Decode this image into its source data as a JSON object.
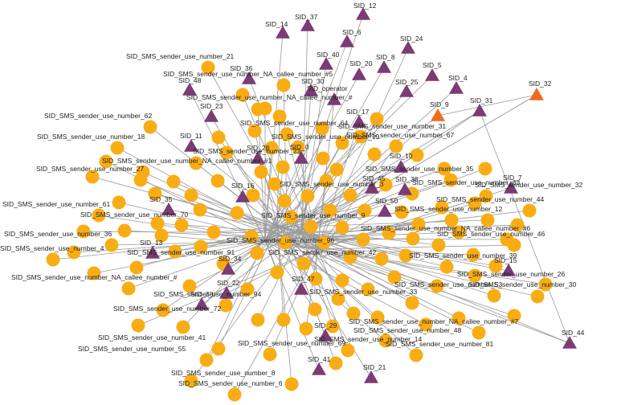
{
  "colors": {
    "edge": "#9a9a9a",
    "circle_node": "#f9ad14",
    "triangle_node": "#7b3b73",
    "highlight_triangle_node": "#f26a1d",
    "label": "#222222"
  },
  "triangle_labels": [
    "SID_37",
    "SID_12",
    "SID_14",
    "SID_6",
    "SID_24",
    "SID_40",
    "SID_8",
    "SID_20",
    "SID_5",
    "SID_36",
    "SID_30",
    "SID_4",
    "SID_48",
    "SID_25",
    "SID_operator",
    "SID_32",
    "SID_9",
    "SID_31",
    "SID_23",
    "SID_17",
    "SID_11",
    "SID_28",
    "SID_0",
    "SID_10",
    "SID_7",
    "SID_45",
    "SID_38",
    "SID_16",
    "SID_35",
    "SID_50",
    "SID_15",
    "SID_13",
    "SID_34",
    "SID_47",
    "SID_22",
    "SID_38",
    "SID_29",
    "SID_41",
    "SID_21",
    "SID_44"
  ],
  "circle_labels": [
    "SID_SMS_sender_use_number_21",
    "SID_SMS_sender_use_number_NA_callee_number_#5",
    "SID_SMS_sender_use_number_NA_callee_number_#",
    "SID_SMS_sender_use_number_62",
    "SID_SMS_sender_use_number_64",
    "SID_SMS_sender_use_number_31",
    "SID_SMS_sender_use_number_18",
    "SID_SMS_sender_use_number_19",
    "SID_SMS_sender_use_number_23",
    "SID_SMS_sender_use_number_67",
    "SID_SMS_sender_use_number_NA_callee_number_#1",
    "SID_SMS_sender_use_number_27",
    "SID_SMS_sender_use_number_35",
    "SID_SMS_sender_use_number_63",
    "SID_SMS_sender_use_number_32",
    "SID_SMS_sender_use_number_3",
    "SID_SMS_sender_use_number_44",
    "SID_SMS_sender_use_number_61",
    "SID_SMS_sender_use_number_12",
    "SID_SMS_sender_use_number_70",
    "SID_SMS_sender_use_number_9",
    "SID_SMS_sender_use_number_NA_callee_number_#6",
    "SID_SMS_sender_use_number_36",
    "SID_SMS_sender_use_number_96",
    "SID_SMS_sender_use_number_46",
    "SID_SMS_sender_use_number_4",
    "SID_SMS_sender_use_number_42",
    "SID_SMS_sender_use_number_91",
    "SID_SMS_sender_use_number_39",
    "SID_SMS_sender_use_number_26",
    "SID_SMS_sender_use_number_53",
    "SID_SMS_sender_use_number_30",
    "SID_SMS_sender_use_number_NA_callee_number_#",
    "SID_SMS_sender_use_number_94",
    "SID_SMS_sender_use_number_33",
    "SID_SMS_sender_use_number_72",
    "SID_SMS_sender_use_number_NA_callee_number_#7",
    "SID_SMS_sender_use_number_48",
    "SID_SMS_sender_use_number_41",
    "SID_SMS_sender_use_number_69",
    "SID_SMS_sender_use_number_14",
    "SID_SMS_sender_use_number_81",
    "SID_SMS_sender_use_number_55",
    "SID_SMS_sender_use_number_8",
    "SID_SMS_sender_use_number_6"
  ]
}
